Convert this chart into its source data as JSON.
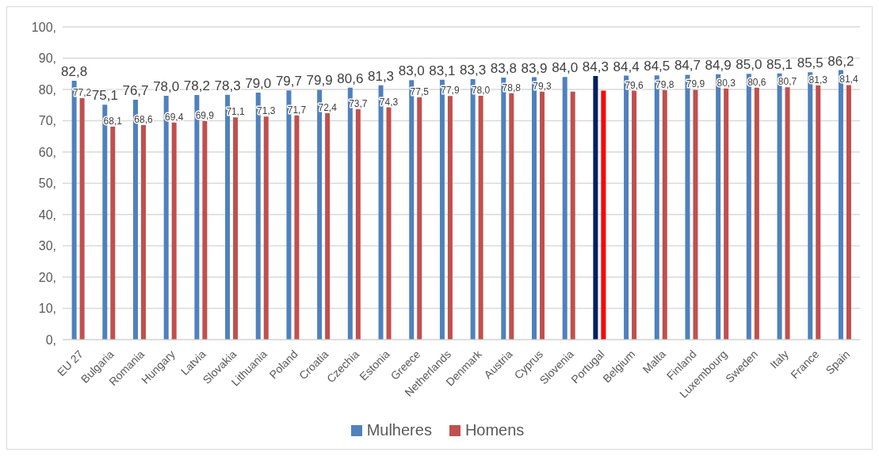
{
  "chart_data": {
    "type": "bar",
    "categories": [
      "EU 27",
      "Bulgaria",
      "Romania",
      "Hungary",
      "Latvia",
      "Slovakia",
      "Lithuania",
      "Poland",
      "Croatia",
      "Czechia",
      "Estonia",
      "Greece",
      "Netherlands",
      "Denmark",
      "Austria",
      "Cyprus",
      "Slovenia",
      "Portugal",
      "Belgium",
      "Malta",
      "Finland",
      "Luxembourg",
      "Sweden",
      "Italy",
      "France",
      "Spain"
    ],
    "series": [
      {
        "name": "Mulheres",
        "color": "#4f81bd",
        "colors": [
          "#4f81bd",
          "#4f81bd",
          "#4f81bd",
          "#4f81bd",
          "#4f81bd",
          "#4f81bd",
          "#4f81bd",
          "#4f81bd",
          "#4f81bd",
          "#4f81bd",
          "#4f81bd",
          "#4f81bd",
          "#4f81bd",
          "#4f81bd",
          "#4f81bd",
          "#4f81bd",
          "#4f81bd",
          "#002060",
          "#4f81bd",
          "#4f81bd",
          "#4f81bd",
          "#4f81bd",
          "#4f81bd",
          "#4f81bd",
          "#4f81bd",
          "#4f81bd"
        ],
        "values": [
          82.8,
          75.1,
          76.7,
          78.0,
          78.2,
          78.3,
          79.0,
          79.7,
          79.9,
          80.6,
          81.3,
          83.0,
          83.1,
          83.3,
          83.8,
          83.9,
          84.0,
          84.3,
          84.4,
          84.5,
          84.7,
          84.9,
          85.0,
          85.1,
          85.5,
          86.2
        ],
        "value_labels": [
          "82,8",
          "75,1",
          "76,7",
          "78,0",
          "78,2",
          "78,3",
          "79,0",
          "79,7",
          "79,9",
          "80,6",
          "81,3",
          "83,0",
          "83,1",
          "83,3",
          "83,8",
          "83,9",
          "84,0",
          "84,3",
          "84,4",
          "84,5",
          "84,7",
          "84,9",
          "85,0",
          "85,1",
          "85,5",
          "86,2"
        ]
      },
      {
        "name": "Homens",
        "color": "#c0504d",
        "colors": [
          "#c0504d",
          "#c0504d",
          "#c0504d",
          "#c0504d",
          "#c0504d",
          "#c0504d",
          "#c0504d",
          "#c0504d",
          "#c0504d",
          "#c0504d",
          "#c0504d",
          "#c0504d",
          "#c0504d",
          "#c0504d",
          "#c0504d",
          "#c0504d",
          "#c0504d",
          "#ff0000",
          "#c0504d",
          "#c0504d",
          "#c0504d",
          "#c0504d",
          "#c0504d",
          "#c0504d",
          "#c0504d",
          "#c0504d"
        ],
        "values": [
          77.2,
          68.1,
          68.6,
          69.4,
          69.9,
          71.1,
          71.3,
          71.7,
          72.4,
          73.7,
          74.3,
          77.5,
          77.9,
          78.0,
          78.8,
          79.3,
          79.3,
          79.6,
          79.6,
          79.8,
          79.9,
          80.3,
          80.6,
          80.7,
          81.3,
          81.4
        ],
        "value_labels": [
          "77,2",
          "68,1",
          "68,6",
          "69,4",
          "69,9",
          "71,1",
          "71,3",
          "71,7",
          "72,4",
          "73,7",
          "74,3",
          "77,5",
          "77,9",
          "78,0",
          "78,8",
          "79,3",
          null,
          null,
          "79,6",
          "79,8",
          "79,9",
          "80,3",
          "80,6",
          "80,7",
          "81,3",
          "81,4"
        ]
      }
    ],
    "ylim": [
      0,
      100
    ],
    "yticks": [
      {
        "value": 0,
        "label": "0,"
      },
      {
        "value": 10,
        "label": "10,"
      },
      {
        "value": 20,
        "label": "20,"
      },
      {
        "value": 30,
        "label": "30,"
      },
      {
        "value": 40,
        "label": "40,"
      },
      {
        "value": 50,
        "label": "50,"
      },
      {
        "value": 60,
        "label": "60,"
      },
      {
        "value": 70,
        "label": "70,"
      },
      {
        "value": 80,
        "label": "80,"
      },
      {
        "value": 90,
        "label": "90,"
      },
      {
        "value": 100,
        "label": "100,"
      }
    ],
    "grid": "y",
    "legend": "bottom"
  }
}
